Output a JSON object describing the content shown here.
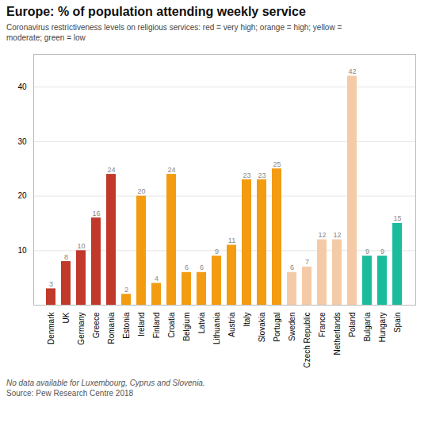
{
  "chart_data": {
    "type": "bar",
    "title": "Europe: % of population attending weekly service",
    "subtitle": [
      "Coronavirus restrictiveness levels on religious services: red = very high; orange = high; yellow =",
      "moderate; green = low"
    ],
    "annotations": [
      "No data available for Luxembourg, Cyprus and Slovenia.",
      "Source: Pew Research Centre 2018"
    ],
    "categories": [
      "Denmark",
      "UK",
      "Germany",
      "Greece",
      "Romania",
      "Estonia",
      "Ireland",
      "Finland",
      "Croatia",
      "Belgium",
      "Latvia",
      "Lithuania",
      "Austria",
      "Italy",
      "Slovakia",
      "Portugal",
      "Sweden",
      "Czech Republic",
      "France",
      "Netherlands",
      "Poland",
      "Bulgaria",
      "Hungary",
      "Spain"
    ],
    "values": [
      3,
      8,
      10,
      16,
      24,
      2,
      20,
      4,
      24,
      6,
      6,
      9,
      11,
      23,
      23,
      25,
      6,
      7,
      12,
      12,
      42,
      9,
      9,
      15
    ],
    "colors": [
      "#c0392b",
      "#c0392b",
      "#c0392b",
      "#c0392b",
      "#c0392b",
      "#f39c12",
      "#f39c12",
      "#f39c12",
      "#f39c12",
      "#f39c12",
      "#f39c12",
      "#f39c12",
      "#f39c12",
      "#f39c12",
      "#f39c12",
      "#f39c12",
      "#f5cba7",
      "#f5cba7",
      "#f5cba7",
      "#f5cba7",
      "#f5cba7",
      "#1abc9c",
      "#1abc9c",
      "#1abc9c"
    ],
    "ylim": [
      0,
      46
    ],
    "yticks": [
      10,
      20,
      30,
      40
    ],
    "grid": true,
    "data_labels": true
  }
}
